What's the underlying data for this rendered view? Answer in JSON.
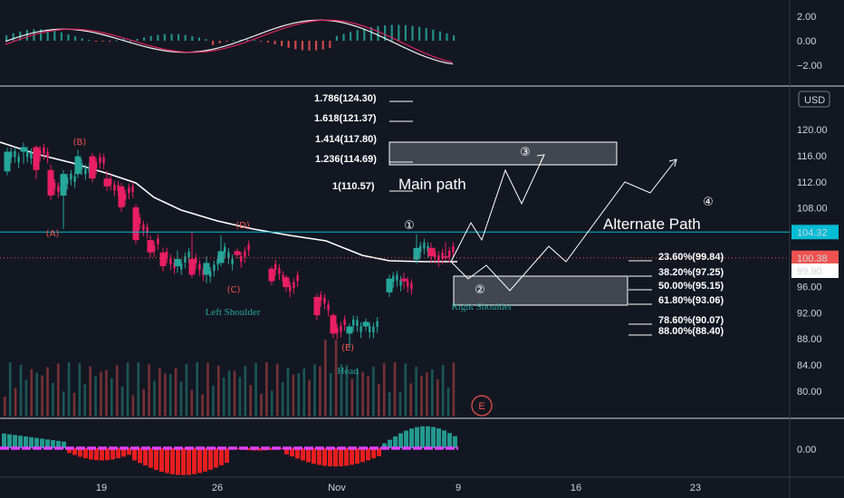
{
  "chart_data": [
    {
      "type": "line",
      "panel": "oscillator-top",
      "yticks": [
        "2.00",
        "0.00",
        "−2.00"
      ],
      "ylim": [
        -3,
        3
      ],
      "series": [],
      "histogram": {
        "positive_color": "#26a69a",
        "negative_color": "#ef5350"
      }
    },
    {
      "type": "candlestick",
      "panel": "price",
      "currency": "USD",
      "yticks": [
        "120.00",
        "116.00",
        "112.00",
        "108.00",
        "104.00",
        "100.00",
        "96.00",
        "92.00",
        "88.00",
        "84.00",
        "80.00"
      ],
      "ylim": [
        78.2,
        125.2
      ],
      "xticks": [
        "19",
        "26",
        "Nov",
        "9",
        "16",
        "23"
      ],
      "price_labels": {
        "level_line": "104.32",
        "last_price": "100.38",
        "crosshair": "99.90"
      },
      "fib_extensions": [
        "1.786(124.30)",
        "1.618(121.37)",
        "1.414(117.80)",
        "1.236(114.69)",
        "1(110.57)"
      ],
      "fib_retracements": [
        "23.60%(99.84)",
        "38.20%(97.25)",
        "50.00%(95.15)",
        "61.80%(93.06)",
        "78.60%(90.07)",
        "88.00%(88.40)"
      ],
      "wave_labels": [
        "(A)",
        "(B)",
        "(C)",
        "(D)",
        "(E)",
        "①",
        "②",
        "③",
        "④"
      ],
      "annotations": [
        "Main path",
        "Alternate Path",
        "Left Shoulder",
        "Head",
        "Right Shoulder",
        "E"
      ],
      "candles_approx": [
        {
          "x": "Oct 12",
          "open": 113.6,
          "high": 117.2,
          "low": 113.0,
          "close": 116.6
        },
        {
          "x": "Oct 13",
          "open": 116.6,
          "high": 118.0,
          "low": 114.8,
          "close": 117.3
        },
        {
          "x": "Oct 14",
          "open": 117.3,
          "high": 117.6,
          "low": 112.4,
          "close": 113.8
        },
        {
          "x": "Oct 15",
          "open": 113.8,
          "high": 114.6,
          "low": 109.2,
          "close": 109.9
        },
        {
          "x": "Oct 16",
          "open": 109.9,
          "high": 113.8,
          "low": 104.8,
          "close": 113.2
        },
        {
          "x": "Oct 17",
          "open": 113.2,
          "high": 116.9,
          "low": 112.6,
          "close": 115.9
        },
        {
          "x": "Oct 18",
          "open": 115.9,
          "high": 116.4,
          "low": 111.9,
          "close": 112.5
        },
        {
          "x": "Oct 19",
          "open": 112.5,
          "high": 113.7,
          "low": 110.6,
          "close": 111.3
        },
        {
          "x": "Oct 20",
          "open": 111.3,
          "high": 111.8,
          "low": 107.4,
          "close": 108.1
        },
        {
          "x": "Oct 21",
          "open": 108.1,
          "high": 108.6,
          "low": 102.5,
          "close": 103.1
        },
        {
          "x": "Oct 22",
          "open": 103.1,
          "high": 103.8,
          "low": 100.4,
          "close": 101.2
        },
        {
          "x": "Oct 23",
          "open": 101.2,
          "high": 101.9,
          "low": 98.3,
          "close": 99.1
        },
        {
          "x": "Oct 24",
          "open": 99.1,
          "high": 101.5,
          "low": 98.1,
          "close": 100.2
        },
        {
          "x": "Oct 25",
          "open": 100.2,
          "high": 104.2,
          "low": 97.3,
          "close": 97.8
        },
        {
          "x": "Oct 26",
          "open": 97.8,
          "high": 100.6,
          "low": 96.5,
          "close": 99.6
        },
        {
          "x": "Oct 27",
          "open": 99.6,
          "high": 103.8,
          "low": 99.1,
          "close": 101.4
        },
        {
          "x": "Oct 28",
          "open": 101.4,
          "high": 101.8,
          "low": 100.3,
          "close": 100.8
        },
        {
          "x": "Oct 29",
          "open": 98.7,
          "high": 99.1,
          "low": 96.2,
          "close": 96.8
        },
        {
          "x": "Oct 30",
          "open": 97.4,
          "high": 97.8,
          "low": 95.2,
          "close": 95.9
        },
        {
          "x": "Oct 31",
          "open": 94.4,
          "high": 94.9,
          "low": 90.8,
          "close": 91.6
        },
        {
          "x": "Nov 1",
          "open": 91.6,
          "high": 91.9,
          "low": 88.1,
          "close": 88.8
        },
        {
          "x": "Nov 2",
          "open": 88.8,
          "high": 90.4,
          "low": 86.6,
          "close": 89.9
        },
        {
          "x": "Nov 3",
          "open": 89.9,
          "high": 91.1,
          "low": 89.2,
          "close": 90.6
        },
        {
          "x": "Nov 4",
          "open": 95.1,
          "high": 97.8,
          "low": 94.4,
          "close": 97.2
        },
        {
          "x": "Nov 5",
          "open": 97.2,
          "high": 98.1,
          "low": 95.6,
          "close": 96.8
        },
        {
          "x": "Nov 6",
          "open": 100.1,
          "high": 104.0,
          "low": 99.5,
          "close": 101.9
        },
        {
          "x": "Nov 7",
          "open": 101.9,
          "high": 102.7,
          "low": 99.6,
          "close": 100.6
        },
        {
          "x": "Nov 8",
          "open": 100.6,
          "high": 102.8,
          "low": 99.9,
          "close": 100.4
        }
      ]
    },
    {
      "type": "bar",
      "panel": "oscillator-bottom",
      "yticks": [
        "0.00"
      ],
      "series": [],
      "colors": {
        "positive": "#26a69a",
        "negative": "#ff1f1f",
        "signal": "#e040fb"
      }
    }
  ]
}
